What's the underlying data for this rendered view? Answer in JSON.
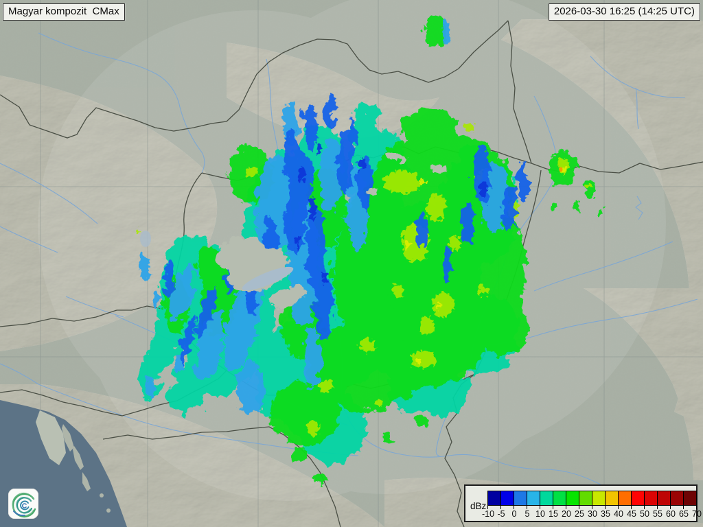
{
  "header": {
    "product_label": "Magyar kompozit  CMax",
    "timestamp": "2026-03-30 16:25 (14:25 UTC)"
  },
  "legend": {
    "unit": "dBz",
    "tick_values": [
      "-10",
      "-5",
      "0",
      "5",
      "10",
      "15",
      "20",
      "25",
      "30",
      "35",
      "40",
      "45",
      "50",
      "55",
      "60",
      "65",
      "70"
    ],
    "cell_colors": [
      "#0000A0",
      "#0000E8",
      "#1E78E6",
      "#28B4E8",
      "#00D89C",
      "#00E044",
      "#06E400",
      "#62DC00",
      "#C8E800",
      "#F2C400",
      "#FF6E00",
      "#FF0404",
      "#DC0404",
      "#BE0404",
      "#9A0404",
      "#6E0404"
    ]
  },
  "logo": {
    "icon": "spiral-cyclone-icon"
  },
  "map": {
    "land": "#A5AEA2",
    "land_patch": "#B6BDB0",
    "island": "#AEB5A9",
    "istria": "#B9C0B3",
    "mountain": "#D8D1BF",
    "sea": "#5C7386",
    "river": "#7AA6D6",
    "border": "#4A4F45",
    "graticule": "#7E8A88",
    "lake": "#A9BCCB",
    "city_ring": "#97938B",
    "coverage_tint": "#FFFFFF",
    "echo": {
      "blue_dark": "#0A34D8",
      "blue": "#1463E8",
      "azure": "#2EA4E8",
      "teal": "#00D6A4",
      "green": "#0ADC1E",
      "yellow_green": "#A8E800",
      "yellow": "#E0EE00",
      "orange": "#F0A000"
    }
  }
}
